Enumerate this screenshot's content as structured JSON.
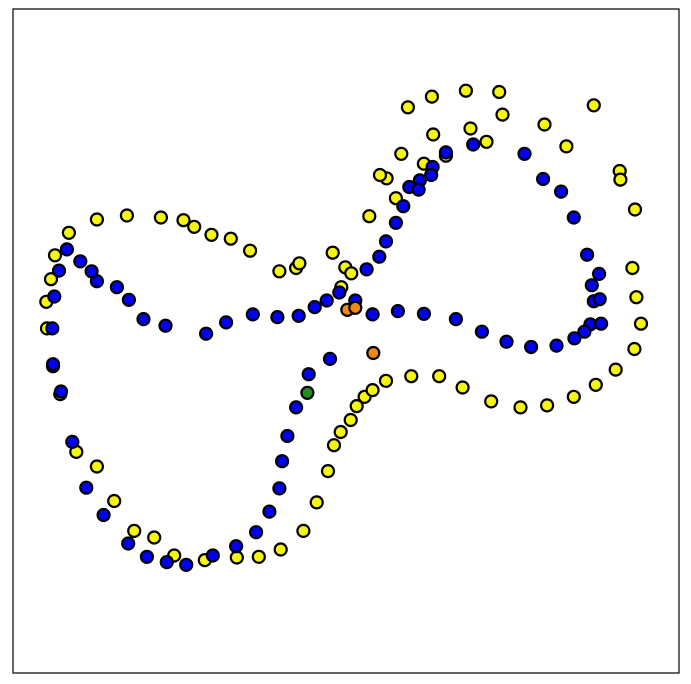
{
  "chart_data": {
    "type": "scatter",
    "title": "",
    "xlabel": "",
    "ylabel": "",
    "xlim": [
      0,
      100
    ],
    "ylim": [
      0,
      100
    ],
    "grid": false,
    "legend": "none",
    "axis_ticks": "hidden",
    "series": [
      {
        "color": "#f5f50f",
        "points": [
          [
            87.2,
            85.5
          ],
          [
            73.5,
            84.1
          ],
          [
            68.7,
            82.0
          ],
          [
            71.1,
            80.0
          ],
          [
            79.8,
            82.6
          ],
          [
            83.1,
            79.3
          ],
          [
            61.7,
            76.7
          ],
          [
            63.1,
            81.1
          ],
          [
            65.0,
            77.9
          ],
          [
            58.3,
            78.2
          ],
          [
            56.1,
            74.5
          ],
          [
            57.5,
            71.5
          ],
          [
            53.5,
            68.8
          ],
          [
            55.1,
            75.0
          ],
          [
            91.1,
            75.6
          ],
          [
            93.4,
            69.8
          ],
          [
            91.2,
            74.3
          ],
          [
            49.9,
            61.1
          ],
          [
            42.5,
            61.0
          ],
          [
            50.8,
            60.2
          ],
          [
            49.3,
            58.1
          ],
          [
            48.0,
            63.3
          ],
          [
            40.0,
            60.5
          ],
          [
            43.0,
            61.7
          ],
          [
            35.6,
            63.6
          ],
          [
            32.7,
            65.4
          ],
          [
            29.8,
            66.0
          ],
          [
            27.2,
            67.2
          ],
          [
            25.6,
            68.2
          ],
          [
            22.2,
            68.6
          ],
          [
            17.1,
            68.9
          ],
          [
            12.6,
            68.3
          ],
          [
            8.4,
            66.3
          ],
          [
            6.3,
            62.9
          ],
          [
            5.7,
            59.3
          ],
          [
            5.0,
            55.9
          ],
          [
            5.1,
            51.9
          ],
          [
            6.0,
            46.2
          ],
          [
            7.1,
            42.0
          ],
          [
            9.5,
            33.3
          ],
          [
            12.6,
            31.1
          ],
          [
            15.2,
            25.9
          ],
          [
            18.2,
            21.4
          ],
          [
            21.2,
            20.4
          ],
          [
            24.2,
            17.7
          ],
          [
            28.8,
            17.0
          ],
          [
            33.6,
            17.4
          ],
          [
            36.9,
            17.5
          ],
          [
            40.2,
            18.6
          ],
          [
            43.6,
            21.4
          ],
          [
            45.6,
            25.7
          ],
          [
            47.3,
            30.4
          ],
          [
            48.2,
            34.3
          ],
          [
            49.2,
            36.3
          ],
          [
            50.7,
            38.1
          ],
          [
            51.6,
            40.2
          ],
          [
            52.8,
            41.6
          ],
          [
            54.0,
            42.6
          ],
          [
            56.0,
            44.0
          ],
          [
            59.8,
            44.7
          ],
          [
            64.0,
            44.7
          ],
          [
            67.5,
            43.0
          ],
          [
            71.8,
            40.9
          ],
          [
            76.2,
            40.0
          ],
          [
            80.2,
            40.3
          ],
          [
            84.2,
            41.6
          ],
          [
            87.5,
            43.4
          ],
          [
            90.5,
            45.7
          ],
          [
            93.3,
            48.8
          ],
          [
            94.3,
            52.6
          ],
          [
            93.6,
            56.6
          ],
          [
            93.0,
            61.0
          ],
          [
            73.0,
            87.5
          ],
          [
            68.0,
            87.7
          ],
          [
            62.9,
            86.8
          ],
          [
            59.3,
            85.2
          ]
        ]
      },
      {
        "color": "#0000f5",
        "points": [
          [
            69.1,
            79.6
          ],
          [
            65.0,
            78.4
          ],
          [
            63.0,
            76.2
          ],
          [
            61.1,
            74.2
          ],
          [
            76.8,
            78.2
          ],
          [
            79.6,
            74.4
          ],
          [
            82.3,
            72.5
          ],
          [
            84.2,
            68.6
          ],
          [
            86.2,
            63.0
          ],
          [
            86.9,
            58.4
          ],
          [
            87.2,
            56.0
          ],
          [
            86.7,
            52.5
          ],
          [
            84.3,
            50.4
          ],
          [
            81.6,
            49.3
          ],
          [
            77.8,
            49.1
          ],
          [
            74.1,
            49.9
          ],
          [
            70.4,
            51.4
          ],
          [
            66.5,
            53.3
          ],
          [
            61.7,
            54.1
          ],
          [
            57.8,
            54.5
          ],
          [
            54.0,
            54.0
          ],
          [
            51.4,
            56.1
          ],
          [
            49.0,
            57.3
          ],
          [
            47.1,
            56.1
          ],
          [
            45.3,
            55.1
          ],
          [
            42.9,
            53.8
          ],
          [
            39.7,
            53.6
          ],
          [
            36.0,
            54.0
          ],
          [
            32.0,
            52.8
          ],
          [
            29.0,
            51.1
          ],
          [
            22.9,
            52.3
          ],
          [
            19.6,
            53.3
          ],
          [
            17.4,
            56.2
          ],
          [
            15.6,
            58.1
          ],
          [
            12.6,
            59.0
          ],
          [
            11.8,
            60.5
          ],
          [
            10.1,
            62.0
          ],
          [
            8.1,
            63.8
          ],
          [
            6.9,
            60.6
          ],
          [
            6.2,
            56.7
          ],
          [
            5.9,
            51.9
          ],
          [
            6.0,
            46.5
          ],
          [
            7.2,
            42.4
          ],
          [
            8.9,
            34.8
          ],
          [
            11.0,
            27.9
          ],
          [
            13.6,
            23.8
          ],
          [
            17.3,
            19.5
          ],
          [
            20.1,
            17.5
          ],
          [
            23.1,
            16.7
          ],
          [
            26.0,
            16.3
          ],
          [
            30.0,
            17.7
          ],
          [
            33.5,
            19.1
          ],
          [
            36.5,
            21.2
          ],
          [
            38.5,
            24.3
          ],
          [
            40.0,
            27.8
          ],
          [
            40.4,
            31.9
          ],
          [
            41.2,
            35.7
          ],
          [
            42.5,
            40.0
          ],
          [
            44.4,
            45.0
          ],
          [
            47.6,
            47.3
          ],
          [
            53.1,
            60.8
          ],
          [
            55.0,
            62.7
          ],
          [
            56.0,
            65.0
          ],
          [
            57.5,
            67.8
          ],
          [
            58.6,
            70.3
          ],
          [
            59.5,
            73.2
          ],
          [
            60.9,
            72.8
          ],
          [
            62.8,
            75.0
          ],
          [
            88.0,
            60.1
          ],
          [
            88.1,
            56.3
          ],
          [
            85.8,
            51.4
          ],
          [
            88.3,
            52.6
          ]
        ]
      },
      {
        "color": "#f08a0a",
        "points": [
          [
            50.2,
            54.7
          ],
          [
            51.4,
            55.0
          ],
          [
            54.1,
            48.2
          ]
        ]
      },
      {
        "color": "#1f8f1f",
        "points": [
          [
            44.2,
            42.2
          ]
        ]
      }
    ]
  }
}
